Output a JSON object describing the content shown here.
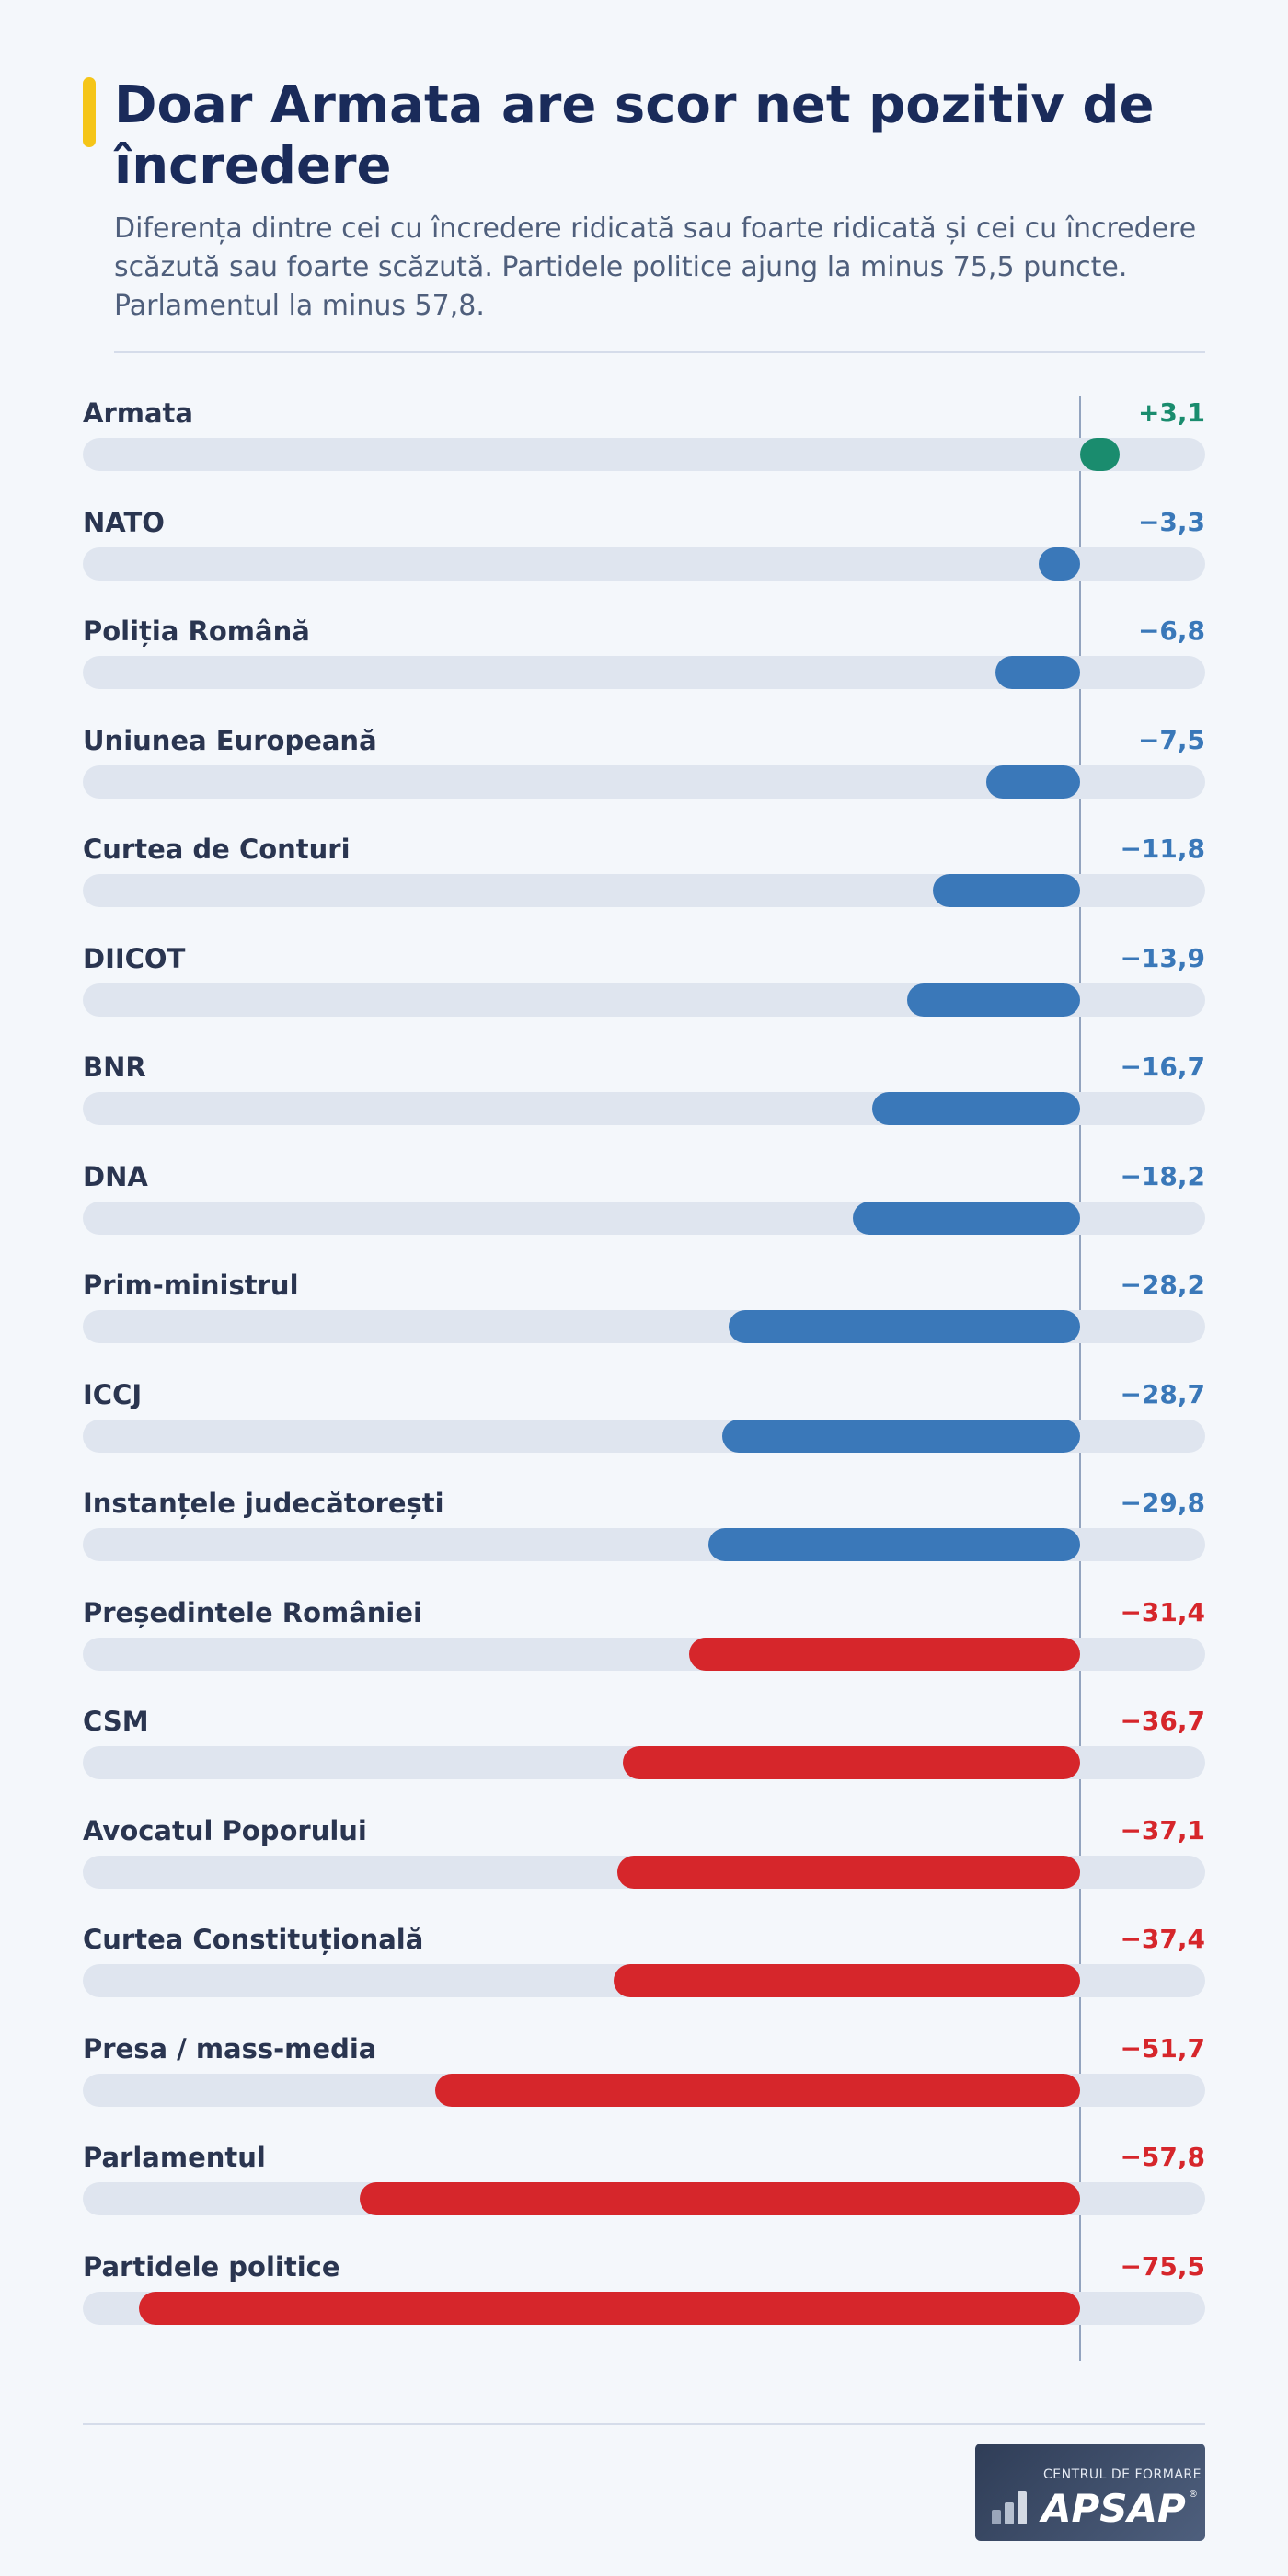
{
  "header": {
    "title": "Doar Armata are scor net pozitiv de încredere",
    "subtitle": "Diferența dintre cei cu încredere ridicată sau foarte ridicată și cei cu încredere scăzută sau foarte scăzută. Partidele politice ajung la minus 75,5 puncte. Parlamentul la minus 57,8."
  },
  "logo": {
    "top_text": "CENTRUL DE FORMARE",
    "main_text": "APSAP",
    "reg_mark": "®"
  },
  "colors": {
    "positive": "#1a8c6e",
    "moderate_negative": "#3a78b9",
    "strong_negative": "#d6262b",
    "track": "#dfe5ef"
  },
  "chart_data": {
    "type": "bar",
    "orientation": "horizontal",
    "xlim": [
      -80,
      3.1
    ],
    "categories": [
      "Armata",
      "NATO",
      "Poliția Română",
      "Uniunea Europeană",
      "Curtea de Conturi",
      "DIICOT",
      "BNR",
      "DNA",
      "Prim-ministrul",
      "ICCJ",
      "Instanțele judecătorești",
      "Președintele României",
      "CSM",
      "Avocatul Poporului",
      "Curtea Constituțională",
      "Presa / mass-media",
      "Parlamentul",
      "Partidele politice"
    ],
    "values": [
      3.1,
      -3.3,
      -6.8,
      -7.5,
      -11.8,
      -13.9,
      -16.7,
      -18.2,
      -28.2,
      -28.7,
      -29.8,
      -31.4,
      -36.7,
      -37.1,
      -37.4,
      -51.7,
      -57.8,
      -75.5
    ],
    "value_labels": [
      "+3,1",
      "−3,3",
      "−6,8",
      "−7,5",
      "−11,8",
      "−13,9",
      "−16,7",
      "−18,2",
      "−28,2",
      "−28,7",
      "−29,8",
      "−31,4",
      "−36,7",
      "−37,1",
      "−37,4",
      "−51,7",
      "−57,8",
      "−75,5"
    ],
    "color_groups": [
      "positive",
      "moderate_negative",
      "moderate_negative",
      "moderate_negative",
      "moderate_negative",
      "moderate_negative",
      "moderate_negative",
      "moderate_negative",
      "moderate_negative",
      "moderate_negative",
      "moderate_negative",
      "strong_negative",
      "strong_negative",
      "strong_negative",
      "strong_negative",
      "strong_negative",
      "strong_negative",
      "strong_negative"
    ]
  }
}
